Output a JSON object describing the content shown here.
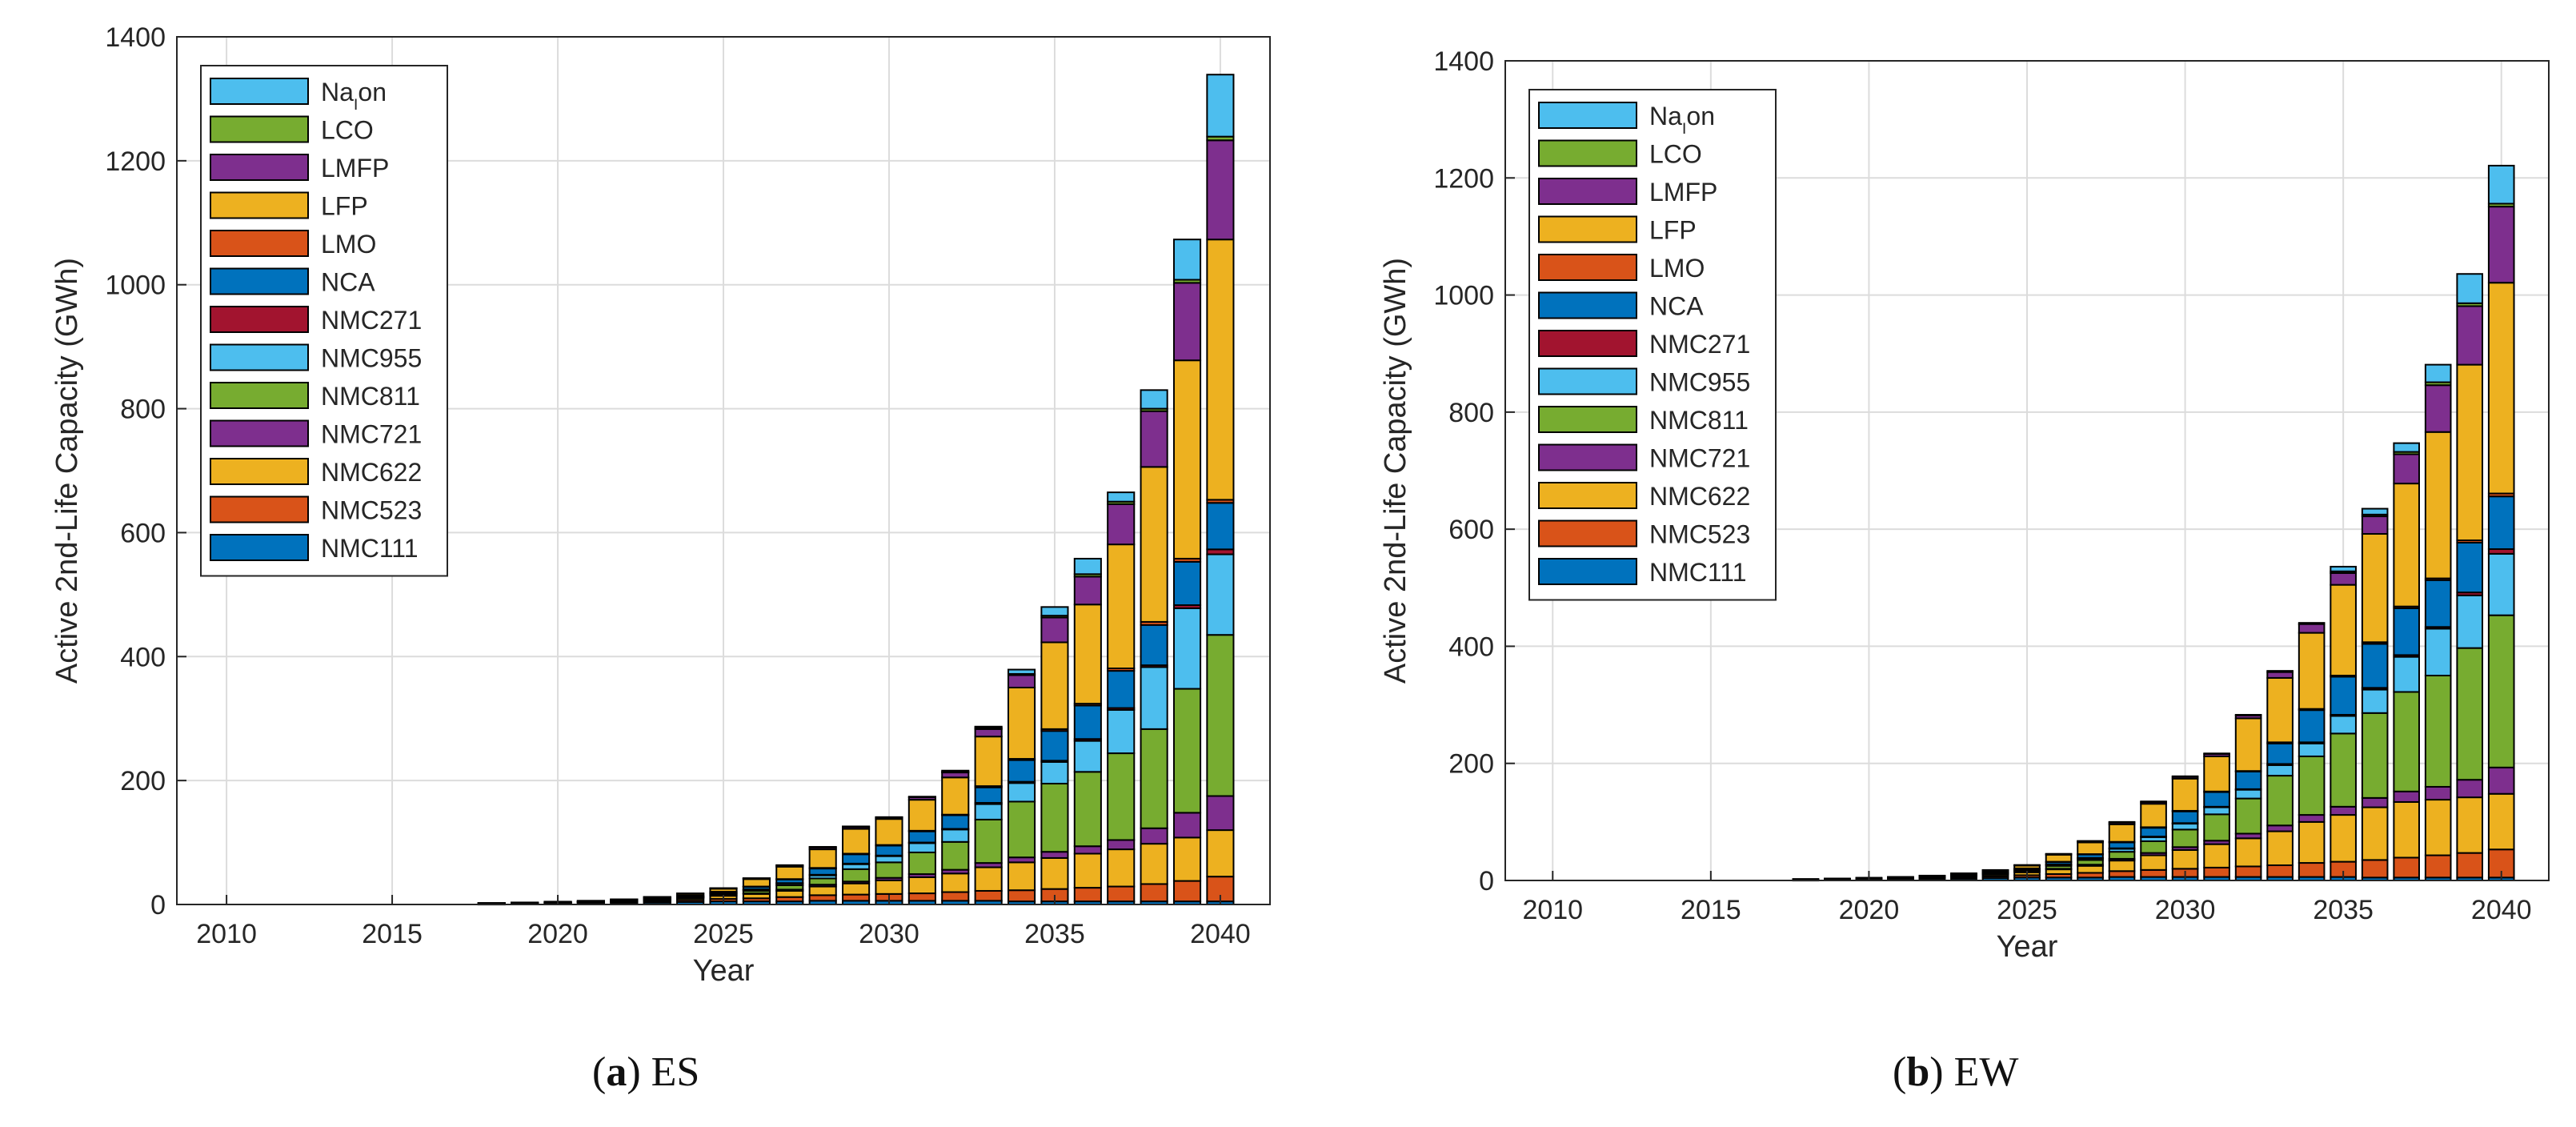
{
  "chart_data": [
    {
      "type": "bar",
      "stacked": true,
      "caption": {
        "letter": "a",
        "label": "ES"
      },
      "xlabel": "Year",
      "ylabel": "Active 2nd-Life Capacity (GWh)",
      "xlim": [
        2008.5,
        2041.5
      ],
      "ylim": [
        0,
        1400
      ],
      "xticks": [
        2010,
        2015,
        2020,
        2025,
        2030,
        2035,
        2040
      ],
      "yticks": [
        0,
        200,
        400,
        600,
        800,
        1000,
        1200,
        1400
      ],
      "grid": true,
      "legend_position": "top-left",
      "categories": [
        2018,
        2019,
        2020,
        2021,
        2022,
        2023,
        2024,
        2025,
        2026,
        2027,
        2028,
        2029,
        2030,
        2031,
        2032,
        2033,
        2034,
        2035,
        2036,
        2037,
        2038,
        2039,
        2040
      ],
      "series": [
        {
          "name": "NMC111",
          "color": "#0072bd",
          "values": [
            0.5,
            0.8,
            1,
            1.5,
            2,
            3,
            4,
            5,
            5,
            5,
            6,
            6,
            6,
            6,
            6,
            6,
            5,
            5,
            5,
            5,
            5,
            5,
            5
          ]
        },
        {
          "name": "NMC523",
          "color": "#d95319",
          "values": [
            0.3,
            0.5,
            0.8,
            1,
            1.5,
            2,
            3,
            4,
            5,
            7,
            9,
            10,
            11,
            12,
            14,
            16,
            18,
            20,
            22,
            24,
            28,
            33,
            40
          ]
        },
        {
          "name": "NMC622",
          "color": "#edb120",
          "values": [
            0.3,
            0.5,
            0.8,
            1,
            1.5,
            2,
            3,
            5,
            7,
            10,
            14,
            18,
            22,
            26,
            30,
            38,
            45,
            50,
            55,
            60,
            65,
            70,
            75
          ]
        },
        {
          "name": "NMC721",
          "color": "#7e2f8e",
          "values": [
            0.1,
            0.1,
            0.1,
            0.2,
            0.2,
            0.3,
            0.5,
            1,
            1,
            2,
            3,
            3,
            4,
            5,
            6,
            7,
            8,
            10,
            12,
            15,
            25,
            40,
            55
          ]
        },
        {
          "name": "NMC811",
          "color": "#77ac30",
          "values": [
            0.2,
            0.2,
            0.3,
            0.4,
            0.5,
            1,
            1.5,
            2,
            4,
            7,
            10,
            20,
            25,
            35,
            45,
            70,
            90,
            110,
            120,
            140,
            160,
            200,
            260
          ]
        },
        {
          "name": "NMC955",
          "color": "#4dbeee",
          "values": [
            0.1,
            0.1,
            0.1,
            0.1,
            0.2,
            0.3,
            0.5,
            1,
            2,
            3,
            5,
            8,
            10,
            15,
            20,
            25,
            30,
            35,
            50,
            70,
            100,
            130,
            130
          ]
        },
        {
          "name": "NMC271",
          "color": "#a2142f",
          "values": [
            0.1,
            0.1,
            0.1,
            0.1,
            0.1,
            0.1,
            0.2,
            0.3,
            0.5,
            0.5,
            1,
            1,
            1,
            1,
            1,
            2,
            2,
            2,
            3,
            3,
            3,
            5,
            8
          ]
        },
        {
          "name": "NCA",
          "color": "#0072bd",
          "values": [
            0.2,
            0.2,
            0.3,
            0.4,
            0.5,
            1,
            1.5,
            2,
            4,
            6,
            10,
            15,
            16,
            18,
            22,
            25,
            35,
            48,
            54,
            60,
            65,
            70,
            75
          ]
        },
        {
          "name": "LMO",
          "color": "#d95319",
          "values": [
            0.1,
            0.1,
            0.1,
            0.1,
            0.1,
            0.2,
            0.2,
            0.3,
            0.5,
            0.5,
            1,
            1,
            1,
            1,
            1,
            2,
            2,
            3,
            3,
            4,
            5,
            5,
            5
          ]
        },
        {
          "name": "LFP",
          "color": "#edb120",
          "values": [
            0.3,
            0.5,
            0.8,
            1,
            1.5,
            2,
            3,
            5,
            12,
            20,
            30,
            40,
            42,
            50,
            60,
            80,
            115,
            140,
            160,
            200,
            250,
            320,
            420
          ]
        },
        {
          "name": "LMFP",
          "color": "#7e2f8e",
          "values": [
            0.1,
            0.1,
            0.1,
            0.1,
            0.1,
            0.2,
            0.3,
            0.5,
            1,
            2,
            3,
            3,
            2,
            4,
            8,
            12,
            20,
            40,
            45,
            65,
            90,
            125,
            160
          ]
        },
        {
          "name": "LCO",
          "color": "#77ac30",
          "values": [
            0.1,
            0.1,
            0.1,
            0.1,
            0.1,
            0.1,
            0.2,
            0.3,
            0.5,
            0.5,
            1,
            1,
            1,
            1,
            1,
            2,
            2,
            3,
            4,
            4,
            4,
            5,
            6
          ]
        },
        {
          "name": "NaIon",
          "color": "#4dbeee",
          "values": [
            0,
            0,
            0,
            0,
            0,
            0,
            0,
            0,
            0,
            0,
            0,
            0,
            0,
            0,
            2,
            2,
            7,
            14,
            25,
            15,
            30,
            65,
            100
          ]
        }
      ]
    },
    {
      "type": "bar",
      "stacked": true,
      "caption": {
        "letter": "b",
        "label": "EW"
      },
      "xlabel": "Year",
      "ylabel": "Active 2nd-Life Capacity (GWh)",
      "xlim": [
        2008.5,
        2041.5
      ],
      "ylim": [
        0,
        1400
      ],
      "xticks": [
        2010,
        2015,
        2020,
        2025,
        2030,
        2035,
        2040
      ],
      "yticks": [
        0,
        200,
        400,
        600,
        800,
        1000,
        1200,
        1400
      ],
      "grid": true,
      "legend_position": "top-left",
      "categories": [
        2018,
        2019,
        2020,
        2021,
        2022,
        2023,
        2024,
        2025,
        2026,
        2027,
        2028,
        2029,
        2030,
        2031,
        2032,
        2033,
        2034,
        2035,
        2036,
        2037,
        2038,
        2039,
        2040
      ],
      "series": [
        {
          "name": "NMC111",
          "color": "#0072bd",
          "values": [
            0.5,
            0.8,
            1,
            1.5,
            2,
            3,
            4,
            5,
            5,
            5,
            6,
            6,
            6,
            6,
            6,
            6,
            6,
            6,
            5,
            5,
            5,
            5,
            5
          ]
        },
        {
          "name": "NMC523",
          "color": "#d95319",
          "values": [
            0.3,
            0.5,
            0.8,
            1,
            1.5,
            2,
            3,
            4,
            6,
            8,
            10,
            12,
            14,
            16,
            18,
            20,
            24,
            26,
            30,
            34,
            38,
            42,
            48
          ]
        },
        {
          "name": "NMC622",
          "color": "#edb120",
          "values": [
            0.3,
            0.5,
            0.8,
            1,
            1.5,
            2,
            3,
            5,
            8,
            12,
            18,
            25,
            32,
            40,
            48,
            58,
            70,
            80,
            90,
            95,
            95,
            95,
            95
          ]
        },
        {
          "name": "NMC721",
          "color": "#7e2f8e",
          "values": [
            0.1,
            0.1,
            0.1,
            0.2,
            0.2,
            0.3,
            0.5,
            1,
            1,
            2,
            3,
            4,
            5,
            6,
            8,
            10,
            12,
            14,
            16,
            18,
            22,
            30,
            45
          ]
        },
        {
          "name": "NMC811",
          "color": "#77ac30",
          "values": [
            0.2,
            0.2,
            0.3,
            0.4,
            0.5,
            1,
            1.5,
            2,
            5,
            8,
            12,
            20,
            30,
            45,
            60,
            85,
            100,
            125,
            145,
            170,
            190,
            225,
            260
          ]
        },
        {
          "name": "NMC955",
          "color": "#4dbeee",
          "values": [
            0.1,
            0.1,
            0.1,
            0.1,
            0.2,
            0.3,
            0.5,
            1,
            2,
            3,
            5,
            7,
            10,
            12,
            15,
            18,
            22,
            30,
            40,
            60,
            80,
            90,
            105
          ]
        },
        {
          "name": "NMC271",
          "color": "#a2142f",
          "values": [
            0.1,
            0.1,
            0.1,
            0.1,
            0.1,
            0.1,
            0.2,
            0.3,
            0.5,
            0.5,
            1,
            1,
            1,
            1,
            1,
            2,
            2,
            2,
            3,
            3,
            3,
            5,
            8
          ]
        },
        {
          "name": "NCA",
          "color": "#0072bd",
          "values": [
            0.2,
            0.2,
            0.3,
            0.4,
            0.5,
            1,
            1.5,
            2,
            4,
            6,
            10,
            15,
            20,
            25,
            30,
            35,
            55,
            65,
            75,
            80,
            80,
            85,
            90
          ]
        },
        {
          "name": "LMO",
          "color": "#d95319",
          "values": [
            0.1,
            0.1,
            0.1,
            0.1,
            0.1,
            0.2,
            0.2,
            0.3,
            0.5,
            0.5,
            1,
            1,
            1,
            1,
            1,
            2,
            2,
            2,
            3,
            3,
            3,
            4,
            5
          ]
        },
        {
          "name": "LFP",
          "color": "#edb120",
          "values": [
            0.3,
            0.5,
            0.8,
            1,
            1.5,
            2,
            3,
            5,
            12,
            20,
            30,
            40,
            55,
            60,
            90,
            110,
            130,
            155,
            185,
            210,
            250,
            300,
            360
          ]
        },
        {
          "name": "LMFP",
          "color": "#7e2f8e",
          "values": [
            0.1,
            0.1,
            0.1,
            0.1,
            0.1,
            0.2,
            0.3,
            0.5,
            1,
            2,
            3,
            3,
            3,
            4,
            5,
            10,
            15,
            20,
            30,
            50,
            80,
            100,
            130
          ]
        },
        {
          "name": "LCO",
          "color": "#77ac30",
          "values": [
            0.1,
            0.1,
            0.1,
            0.1,
            0.1,
            0.1,
            0.2,
            0.3,
            0.5,
            0.5,
            1,
            1,
            1,
            1,
            1,
            2,
            2,
            3,
            3,
            4,
            5,
            5,
            5
          ]
        },
        {
          "name": "NaIon",
          "color": "#4dbeee",
          "values": [
            0,
            0,
            0,
            0,
            0,
            0,
            0,
            0,
            0,
            0,
            0,
            0,
            0,
            0,
            0,
            0,
            0,
            8,
            10,
            15,
            30,
            50,
            65
          ]
        }
      ]
    }
  ]
}
